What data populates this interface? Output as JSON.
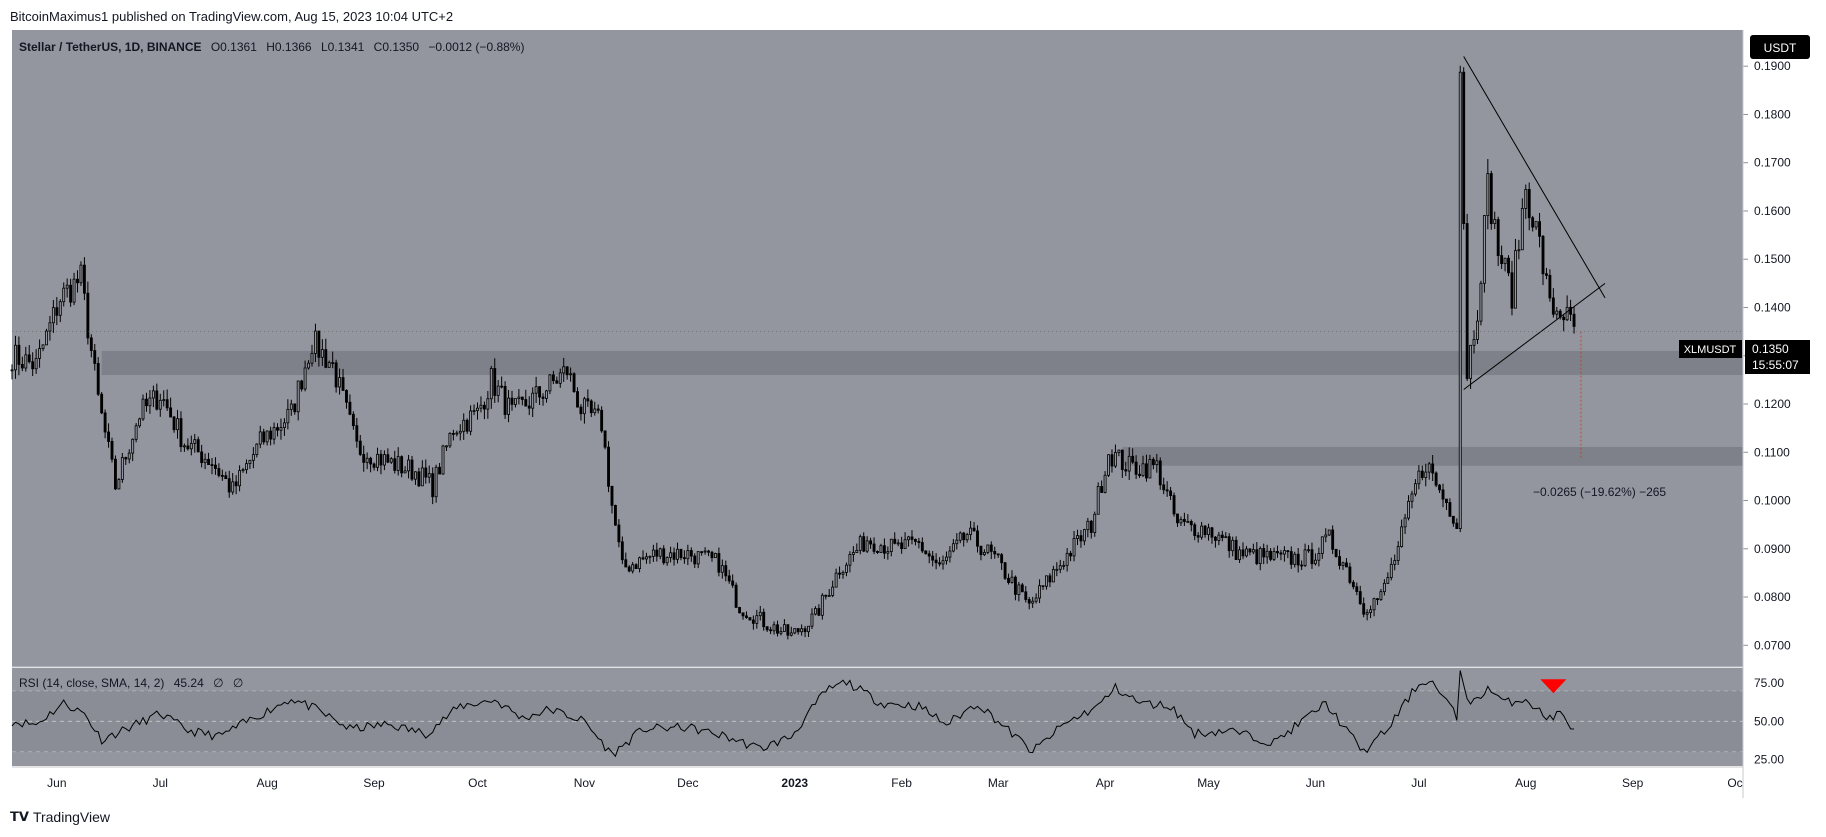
{
  "header": {
    "published_by": "BitcoinMaximus1 published on TradingView.com, Aug 15, 2023 10:04 UTC+2"
  },
  "footer": {
    "brand": "TradingView",
    "logo_icon": "tradingview-logo-icon"
  },
  "symbol_legend": {
    "name": "Stellar / TetherUS, 1D, BINANCE",
    "o_label": "O",
    "o": "0.1361",
    "h_label": "H",
    "h": "0.1366",
    "l_label": "L",
    "l": "0.1341",
    "c_label": "C",
    "c": "0.1350",
    "change": "−0.0012 (−0.88%)"
  },
  "currency_button": "USDT",
  "price_tag": {
    "symbol": "XLMUSDT",
    "price": "0.1350",
    "countdown": "15:55:07"
  },
  "measure_label": "−0.0265 (−19.62%) −265",
  "rsi_legend": {
    "text": "RSI (14, close, SMA, 14, 2)",
    "value": "45.24",
    "na1": "∅",
    "na2": "∅"
  },
  "colors": {
    "background": "#93969f",
    "panel_border": "#7a7d85",
    "candle": "#000000",
    "zone": "#7e8189",
    "rsi_band": "#8a8d95",
    "signal_arrow": "#ff0000",
    "tag_bg": "#000000"
  },
  "chart_data": [
    {
      "type": "candlestick",
      "title": "Stellar / TetherUS, 1D, BINANCE",
      "x_ticks": [
        "Jun",
        "Jul",
        "Aug",
        "Sep",
        "Oct",
        "Nov",
        "Dec",
        "2023",
        "Feb",
        "Mar",
        "Apr",
        "May",
        "Jun",
        "Jul",
        "Aug",
        "Sep",
        "Oc"
      ],
      "y_ticks": [
        "0.1900",
        "0.1800",
        "0.1700",
        "0.1600",
        "0.1500",
        "0.1400",
        "0.1300",
        "0.1200",
        "0.1100",
        "0.1000",
        "0.0900",
        "0.0800",
        "0.0700"
      ],
      "ylim": [
        0.0655,
        0.1975
      ],
      "x_date_range": [
        "2022-05-19",
        "2023-10-03"
      ],
      "price_path": [
        [
          "2022-05-19",
          0.13
        ],
        [
          "2022-05-26",
          0.128
        ],
        [
          "2022-06-02",
          0.142
        ],
        [
          "2022-06-08",
          0.146
        ],
        [
          "2022-06-13",
          0.121
        ],
        [
          "2022-06-18",
          0.103
        ],
        [
          "2022-06-25",
          0.118
        ],
        [
          "2022-07-01",
          0.122
        ],
        [
          "2022-07-08",
          0.112
        ],
        [
          "2022-07-16",
          0.108
        ],
        [
          "2022-07-22",
          0.102
        ],
        [
          "2022-07-30",
          0.112
        ],
        [
          "2022-08-08",
          0.118
        ],
        [
          "2022-08-14",
          0.133
        ],
        [
          "2022-08-20",
          0.128
        ],
        [
          "2022-08-27",
          0.111
        ],
        [
          "2022-09-05",
          0.108
        ],
        [
          "2022-09-13",
          0.106
        ],
        [
          "2022-09-18",
          0.103
        ],
        [
          "2022-09-24",
          0.115
        ],
        [
          "2022-10-01",
          0.118
        ],
        [
          "2022-10-05",
          0.125
        ],
        [
          "2022-10-11",
          0.118
        ],
        [
          "2022-10-19",
          0.122
        ],
        [
          "2022-10-27",
          0.127
        ],
        [
          "2022-10-31",
          0.119
        ],
        [
          "2022-11-06",
          0.116
        ],
        [
          "2022-11-09",
          0.099
        ],
        [
          "2022-11-12",
          0.086
        ],
        [
          "2022-11-22",
          0.089
        ],
        [
          "2022-12-01",
          0.089
        ],
        [
          "2022-12-10",
          0.087
        ],
        [
          "2022-12-16",
          0.078
        ],
        [
          "2022-12-25",
          0.074
        ],
        [
          "2022-12-31",
          0.072
        ],
        [
          "2023-01-07",
          0.076
        ],
        [
          "2023-01-14",
          0.086
        ],
        [
          "2023-01-22",
          0.092
        ],
        [
          "2023-01-30",
          0.09
        ],
        [
          "2023-02-06",
          0.091
        ],
        [
          "2023-02-12",
          0.086
        ],
        [
          "2023-02-20",
          0.093
        ],
        [
          "2023-02-28",
          0.088
        ],
        [
          "2023-03-10",
          0.078
        ],
        [
          "2023-03-18",
          0.086
        ],
        [
          "2023-03-28",
          0.095
        ],
        [
          "2023-04-02",
          0.11
        ],
        [
          "2023-04-08",
          0.107
        ],
        [
          "2023-04-16",
          0.107
        ],
        [
          "2023-04-22",
          0.095
        ],
        [
          "2023-05-01",
          0.094
        ],
        [
          "2023-05-10",
          0.089
        ],
        [
          "2023-05-20",
          0.088
        ],
        [
          "2023-05-30",
          0.088
        ],
        [
          "2023-06-05",
          0.092
        ],
        [
          "2023-06-10",
          0.086
        ],
        [
          "2023-06-15",
          0.078
        ],
        [
          "2023-06-20",
          0.08
        ],
        [
          "2023-06-25",
          0.09
        ],
        [
          "2023-06-30",
          0.103
        ],
        [
          "2023-07-03",
          0.108
        ],
        [
          "2023-07-07",
          0.102
        ],
        [
          "2023-07-12",
          0.096
        ],
        [
          "2023-07-13",
          0.19
        ],
        [
          "2023-07-15",
          0.127
        ],
        [
          "2023-07-18",
          0.14
        ],
        [
          "2023-07-21",
          0.165
        ],
        [
          "2023-07-24",
          0.152
        ],
        [
          "2023-07-28",
          0.143
        ],
        [
          "2023-08-01",
          0.165
        ],
        [
          "2023-08-05",
          0.153
        ],
        [
          "2023-08-08",
          0.14
        ],
        [
          "2023-08-12",
          0.139
        ],
        [
          "2023-08-15",
          0.135
        ]
      ],
      "resistance_zones": [
        {
          "from": 0.126,
          "to": 0.131,
          "start": "2022-06-14"
        },
        {
          "from": 0.1072,
          "to": 0.1111,
          "start": "2023-04-06"
        }
      ],
      "triangle_lines": [
        {
          "from": [
            "2023-07-14",
            0.192
          ],
          "to": [
            "2023-08-24",
            0.142
          ]
        },
        {
          "from": [
            "2023-07-14",
            0.123
          ],
          "to": [
            "2023-08-24",
            0.145
          ]
        }
      ],
      "measure_line": {
        "date": "2023-08-17",
        "from": 0.135,
        "to": 0.1085
      },
      "last_price": 0.135
    },
    {
      "type": "line",
      "title": "RSI (14, close, SMA, 14, 2)",
      "y_ticks": [
        "75.00",
        "50.00",
        "25.00"
      ],
      "ylim": [
        20,
        85
      ],
      "bands": [
        30,
        70
      ],
      "midline": 50,
      "rsi_path": [
        [
          "2022-05-19",
          50
        ],
        [
          "2022-05-26",
          48
        ],
        [
          "2022-06-03",
          62
        ],
        [
          "2022-06-09",
          55
        ],
        [
          "2022-06-14",
          38
        ],
        [
          "2022-06-22",
          46
        ],
        [
          "2022-07-01",
          55
        ],
        [
          "2022-07-09",
          44
        ],
        [
          "2022-07-18",
          40
        ],
        [
          "2022-07-28",
          52
        ],
        [
          "2022-08-08",
          65
        ],
        [
          "2022-08-15",
          58
        ],
        [
          "2022-08-25",
          45
        ],
        [
          "2022-09-05",
          48
        ],
        [
          "2022-09-16",
          42
        ],
        [
          "2022-09-26",
          60
        ],
        [
          "2022-10-06",
          64
        ],
        [
          "2022-10-14",
          52
        ],
        [
          "2022-10-22",
          58
        ],
        [
          "2022-11-01",
          50
        ],
        [
          "2022-11-09",
          28
        ],
        [
          "2022-11-18",
          45
        ],
        [
          "2022-12-01",
          46
        ],
        [
          "2022-12-12",
          40
        ],
        [
          "2022-12-22",
          32
        ],
        [
          "2022-12-31",
          40
        ],
        [
          "2023-01-10",
          70
        ],
        [
          "2023-01-16",
          76
        ],
        [
          "2023-01-26",
          62
        ],
        [
          "2023-02-06",
          60
        ],
        [
          "2023-02-14",
          48
        ],
        [
          "2023-02-23",
          62
        ],
        [
          "2023-03-03",
          46
        ],
        [
          "2023-03-11",
          30
        ],
        [
          "2023-03-20",
          48
        ],
        [
          "2023-03-30",
          60
        ],
        [
          "2023-04-04",
          72
        ],
        [
          "2023-04-11",
          62
        ],
        [
          "2023-04-20",
          60
        ],
        [
          "2023-04-27",
          42
        ],
        [
          "2023-05-07",
          44
        ],
        [
          "2023-05-20",
          36
        ],
        [
          "2023-06-04",
          62
        ],
        [
          "2023-06-10",
          44
        ],
        [
          "2023-06-15",
          30
        ],
        [
          "2023-06-22",
          45
        ],
        [
          "2023-06-30",
          72
        ],
        [
          "2023-07-04",
          78
        ],
        [
          "2023-07-10",
          60
        ],
        [
          "2023-07-12",
          52
        ],
        [
          "2023-07-13",
          83
        ],
        [
          "2023-07-16",
          60
        ],
        [
          "2023-07-21",
          72
        ],
        [
          "2023-07-26",
          62
        ],
        [
          "2023-08-01",
          65
        ],
        [
          "2023-08-07",
          52
        ],
        [
          "2023-08-11",
          55
        ],
        [
          "2023-08-15",
          45
        ]
      ],
      "signal_marker": {
        "type": "down-arrow",
        "date": "2023-08-09",
        "value": 62
      }
    }
  ]
}
